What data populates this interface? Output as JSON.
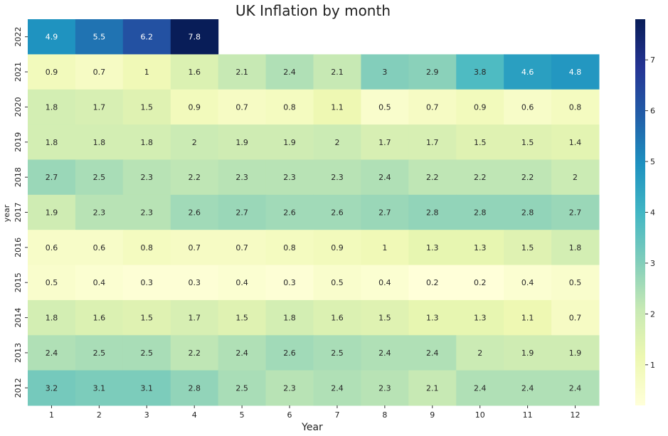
{
  "chart_data": {
    "type": "heatmap",
    "title": "UK Inflation by month",
    "xlabel": "Year",
    "ylabel": "year",
    "x_categories": [
      "1",
      "2",
      "3",
      "4",
      "5",
      "6",
      "7",
      "8",
      "9",
      "10",
      "11",
      "12"
    ],
    "y_categories": [
      "2022",
      "2021",
      "2020",
      "2019",
      "2018",
      "2017",
      "2016",
      "2015",
      "2014",
      "2013",
      "2012"
    ],
    "values": [
      [
        4.9,
        5.5,
        6.2,
        7.8,
        null,
        null,
        null,
        null,
        null,
        null,
        null,
        null
      ],
      [
        0.9,
        0.7,
        1,
        1.6,
        2.1,
        2.4,
        2.1,
        3,
        2.9,
        3.8,
        4.6,
        4.8
      ],
      [
        1.8,
        1.7,
        1.5,
        0.9,
        0.7,
        0.8,
        1.1,
        0.5,
        0.7,
        0.9,
        0.6,
        0.8
      ],
      [
        1.8,
        1.8,
        1.8,
        2,
        1.9,
        1.9,
        2,
        1.7,
        1.7,
        1.5,
        1.5,
        1.4
      ],
      [
        2.7,
        2.5,
        2.3,
        2.2,
        2.3,
        2.3,
        2.3,
        2.4,
        2.2,
        2.2,
        2.2,
        2
      ],
      [
        1.9,
        2.3,
        2.3,
        2.6,
        2.7,
        2.6,
        2.6,
        2.7,
        2.8,
        2.8,
        2.8,
        2.7
      ],
      [
        0.6,
        0.6,
        0.8,
        0.7,
        0.7,
        0.8,
        0.9,
        1,
        1.3,
        1.3,
        1.5,
        1.8
      ],
      [
        0.5,
        0.4,
        0.3,
        0.3,
        0.4,
        0.3,
        0.5,
        0.4,
        0.2,
        0.2,
        0.4,
        0.5
      ],
      [
        1.8,
        1.6,
        1.5,
        1.7,
        1.5,
        1.8,
        1.6,
        1.5,
        1.3,
        1.3,
        1.1,
        0.7
      ],
      [
        2.4,
        2.5,
        2.5,
        2.2,
        2.4,
        2.6,
        2.5,
        2.4,
        2.4,
        2,
        1.9,
        1.9
      ],
      [
        3.2,
        3.1,
        3.1,
        2.8,
        2.5,
        2.3,
        2.4,
        2.3,
        2.1,
        2.4,
        2.4,
        2.4
      ]
    ],
    "colorbar": {
      "colormap": "YlGnBu",
      "range": [
        0.2,
        7.8
      ],
      "ticks": [
        1,
        2,
        3,
        4,
        5,
        6,
        7
      ]
    },
    "grid": false
  }
}
